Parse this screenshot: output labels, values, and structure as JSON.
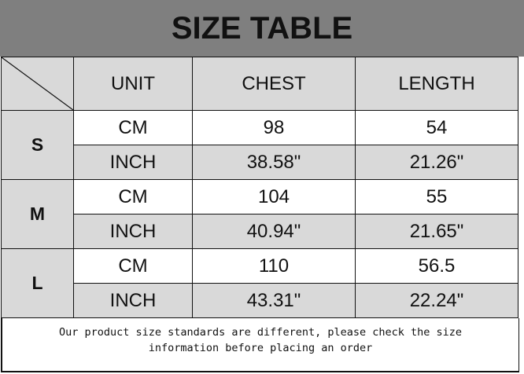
{
  "title": "SIZE TABLE",
  "headers": [
    "UNIT",
    "CHEST",
    "LENGTH"
  ],
  "sizes": [
    {
      "size": "S",
      "rows": [
        {
          "unit": "CM",
          "chest": "98",
          "length": "54"
        },
        {
          "unit": "INCH",
          "chest": "38.58\"",
          "length": "21.26\""
        }
      ]
    },
    {
      "size": "M",
      "rows": [
        {
          "unit": "CM",
          "chest": "104",
          "length": "55"
        },
        {
          "unit": "INCH",
          "chest": "40.94\"",
          "length": "21.65\""
        }
      ]
    },
    {
      "size": "L",
      "rows": [
        {
          "unit": "CM",
          "chest": "110",
          "length": "56.5"
        },
        {
          "unit": "INCH",
          "chest": "43.31\"",
          "length": "22.24\""
        }
      ]
    }
  ],
  "footer": {
    "line1": "Our product size standards are different, please check the size",
    "line2": "information before placing an order"
  }
}
